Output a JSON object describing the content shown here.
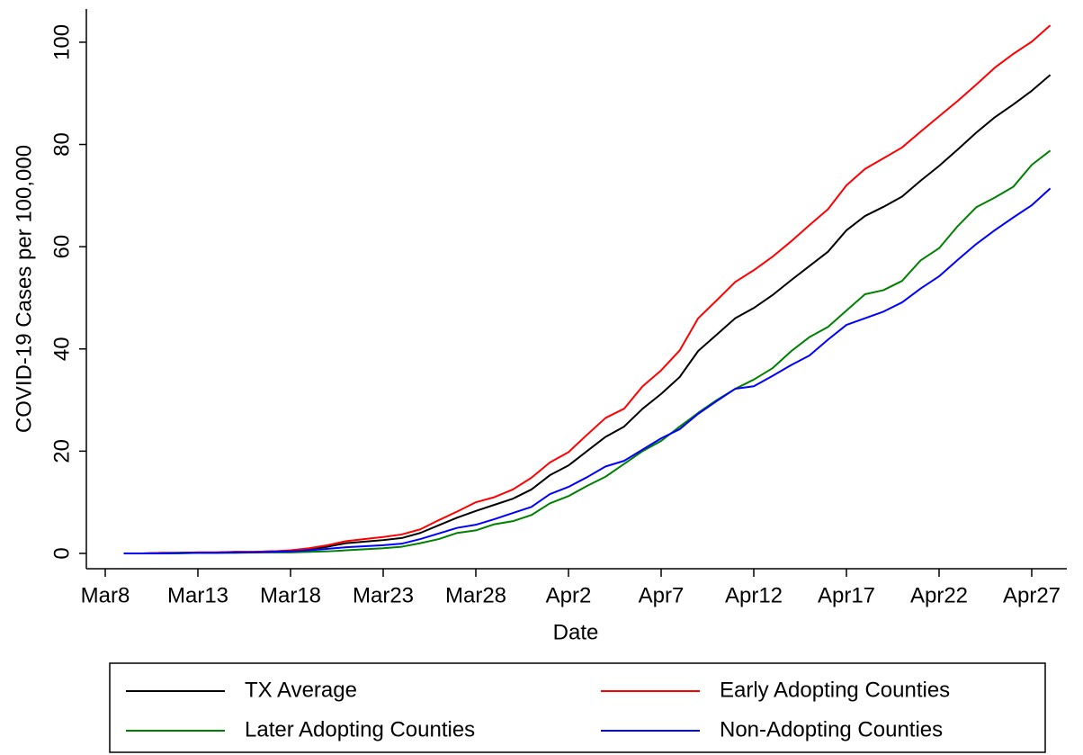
{
  "chart_data": {
    "type": "line",
    "x_label": "Date",
    "y_label": "COVID-19 Cases per 100,000",
    "categories": [
      "Mar8",
      null,
      null,
      null,
      null,
      "Mar13",
      null,
      null,
      null,
      null,
      "Mar18",
      null,
      null,
      null,
      null,
      "Mar23",
      null,
      null,
      null,
      null,
      "Mar28",
      null,
      null,
      null,
      null,
      "Apr2",
      null,
      null,
      null,
      null,
      "Apr7",
      null,
      null,
      null,
      null,
      "Apr12",
      null,
      null,
      null,
      null,
      "Apr17",
      null,
      null,
      null,
      null,
      "Apr22",
      null,
      null,
      null,
      null,
      "Apr27",
      null
    ],
    "series": [
      {
        "name": "TX Average",
        "color": "#000000",
        "values": [
          null,
          0,
          0,
          0.1,
          0.1,
          0.2,
          0.2,
          0.3,
          0.3,
          0.4,
          0.5,
          0.8,
          1.3,
          2,
          2.3,
          2.6,
          3,
          4,
          5.5,
          7,
          8.3,
          9.5,
          10.7,
          12.5,
          15.3,
          17.2,
          20,
          22.8,
          24.8,
          28.3,
          31.2,
          34.5,
          39.6,
          42.8,
          46,
          48,
          50.5,
          53.4,
          56.2,
          59,
          63.2,
          66,
          67.8,
          69.8,
          72.9,
          75.8,
          79,
          82.3,
          85.3,
          87.8,
          90.5,
          93.6
        ]
      },
      {
        "name": "Early Adopting Counties",
        "color": "#ff0000",
        "values": [
          null,
          0,
          0,
          0.1,
          0.1,
          0.2,
          0.2,
          0.3,
          0.3,
          0.4,
          0.6,
          1,
          1.6,
          2.4,
          2.8,
          3.2,
          3.7,
          4.7,
          6.5,
          8.2,
          10,
          11,
          12.5,
          14.8,
          17.8,
          19.8,
          23.2,
          26.5,
          28.3,
          32.7,
          35.8,
          39.7,
          46,
          49.5,
          53.1,
          55.4,
          58,
          61,
          64.2,
          67.3,
          72,
          75.2,
          77.3,
          79.4,
          82.5,
          85.5,
          88.5,
          91.7,
          95,
          97.7,
          100.1,
          103.3
        ]
      },
      {
        "name": "Later Adopting Counties",
        "color": "#008000",
        "values": [
          null,
          0,
          0,
          0,
          0,
          0.1,
          0.1,
          0.1,
          0.2,
          0.2,
          0.2,
          0.3,
          0.4,
          0.6,
          0.8,
          1,
          1.3,
          2,
          2.8,
          4,
          4.5,
          5.7,
          6.3,
          7.5,
          9.8,
          11.2,
          13.2,
          15,
          17.5,
          20,
          22,
          24.8,
          27.5,
          30,
          32.2,
          34,
          36.2,
          39.5,
          42.3,
          44.3,
          47.5,
          50.7,
          51.5,
          53.3,
          57.3,
          59.7,
          64,
          67.7,
          69.6,
          71.7,
          76,
          78.8
        ]
      },
      {
        "name": "Non-Adopting Counties",
        "color": "#0000ff",
        "values": [
          null,
          0,
          0,
          0,
          0.1,
          0.1,
          0.1,
          0.2,
          0.2,
          0.3,
          0.4,
          0.6,
          0.9,
          1.2,
          1.4,
          1.6,
          1.9,
          2.8,
          3.9,
          5,
          5.6,
          6.7,
          7.9,
          9.1,
          11.6,
          13,
          14.9,
          17,
          18.1,
          20.3,
          22.5,
          24.3,
          27.3,
          29.8,
          32.2,
          32.7,
          34.7,
          36.8,
          38.7,
          41.8,
          44.7,
          46,
          47.3,
          49.1,
          51.8,
          54.2,
          57.4,
          60.5,
          63.2,
          65.7,
          68.1,
          71.4
        ]
      }
    ],
    "ylim": [
      -3,
      106.5
    ],
    "yticks": [
      0,
      20,
      40,
      60,
      80,
      100
    ],
    "legend": "bottom"
  }
}
